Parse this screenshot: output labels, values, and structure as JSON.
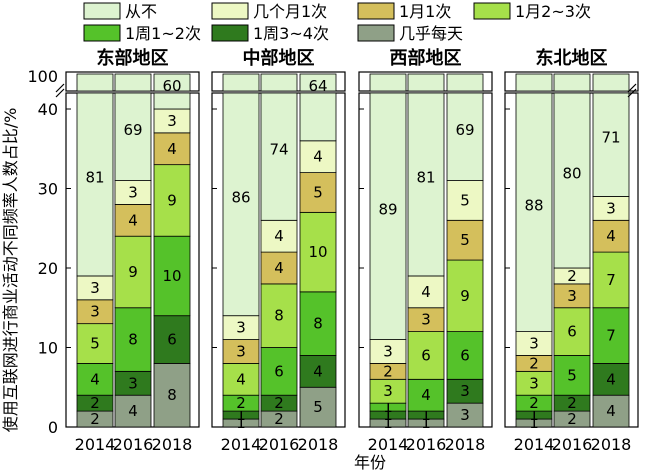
{
  "chart_data": {
    "type": "bar",
    "stacked": true,
    "xlabel": "年份",
    "ylabel": "使用互联网进行商业活动不同频率人数占比/%",
    "y_ticks": [
      "0",
      "10",
      "20",
      "30",
      "40"
    ],
    "y_break_label": "100",
    "ylim": [
      0,
      100
    ],
    "axis_break": [
      42,
      98
    ],
    "legend_position": "top",
    "categories": [
      "2014",
      "2016",
      "2018"
    ],
    "legend": [
      {
        "name": "从不",
        "color": "#ddf3d0"
      },
      {
        "name": "几个月1次",
        "color": "#edf8c4"
      },
      {
        "name": "1月1次",
        "color": "#d4bf5c"
      },
      {
        "name": "1月2~3次",
        "color": "#a6e04a"
      },
      {
        "name": "1周1~2次",
        "color": "#55c22a"
      },
      {
        "name": "1周3~4次",
        "color": "#2f7a1e"
      },
      {
        "name": "几乎每天",
        "color": "#8fa087"
      }
    ],
    "panels": [
      {
        "region": "东部地区",
        "bars": [
          {
            "year": "2014",
            "values": [
              2,
              2,
              4,
              5,
              3,
              3,
              81
            ]
          },
          {
            "year": "2016",
            "values": [
              4,
              3,
              8,
              9,
              4,
              3,
              69
            ]
          },
          {
            "year": "2018",
            "values": [
              8,
              6,
              10,
              9,
              4,
              3,
              60
            ]
          }
        ]
      },
      {
        "region": "中部地区",
        "bars": [
          {
            "year": "2014",
            "values": [
              1,
              1,
              2,
              4,
              3,
              3,
              86
            ]
          },
          {
            "year": "2016",
            "values": [
              2,
              2,
              6,
              8,
              4,
              4,
              74
            ]
          },
          {
            "year": "2018",
            "values": [
              5,
              4,
              8,
              10,
              5,
              4,
              64
            ]
          }
        ]
      },
      {
        "region": "西部地区",
        "bars": [
          {
            "year": "2014",
            "values": [
              1,
              1,
              1,
              3,
              2,
              3,
              89
            ]
          },
          {
            "year": "2016",
            "values": [
              1,
              1,
              4,
              6,
              3,
              4,
              81
            ]
          },
          {
            "year": "2018",
            "values": [
              3,
              3,
              6,
              9,
              5,
              5,
              69
            ]
          }
        ]
      },
      {
        "region": "东北地区",
        "bars": [
          {
            "year": "2014",
            "values": [
              1,
              1,
              2,
              3,
              2,
              3,
              88
            ]
          },
          {
            "year": "2016",
            "values": [
              2,
              2,
              5,
              6,
              3,
              2,
              80
            ]
          },
          {
            "year": "2018",
            "values": [
              4,
              4,
              7,
              7,
              4,
              3,
              71
            ]
          }
        ]
      }
    ]
  }
}
